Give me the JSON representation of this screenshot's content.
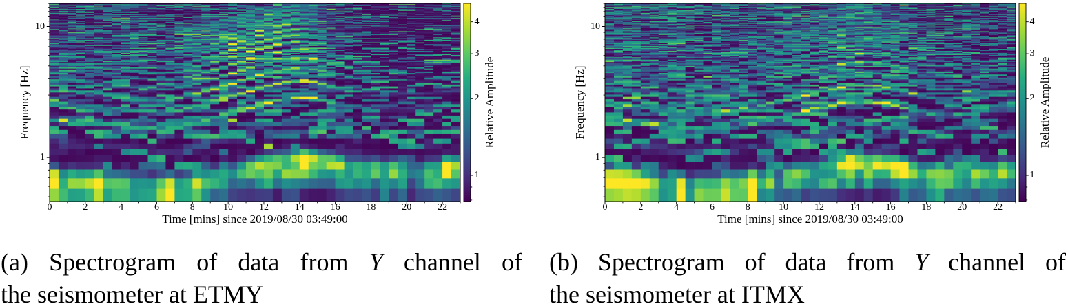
{
  "page": {
    "background": "#ffffff"
  },
  "colors": {
    "text": "#000000",
    "background": "#ffffff",
    "viridis": [
      "#440154",
      "#472d7b",
      "#3b528b",
      "#2c728e",
      "#21918c",
      "#27ad81",
      "#5ec962",
      "#aadc32",
      "#fde725"
    ]
  },
  "chart_data": [
    {
      "panel": "a",
      "type": "heatmap",
      "subtype": "spectrogram",
      "xlabel": "Time [mins] since 2019/08/30 03:49:00",
      "ylabel": "Frequency [Hz]",
      "colorbar_label": "Relative Amplitude",
      "x_range": [
        0,
        23
      ],
      "y_range_hz": [
        0.46,
        15
      ],
      "y_scale": "log",
      "x_ticks": [
        0,
        2,
        4,
        6,
        8,
        10,
        12,
        14,
        16,
        18,
        20,
        22
      ],
      "x_minor_ticks": [
        1,
        3,
        5,
        7,
        9,
        11,
        13,
        15,
        17,
        19,
        21,
        23
      ],
      "y_ticks": [
        1,
        10
      ],
      "y_minor_ticks": [
        0.5,
        0.6,
        0.7,
        0.8,
        0.9,
        2,
        3,
        4,
        5,
        6,
        7,
        8,
        9,
        11,
        12,
        13,
        14,
        15
      ],
      "colorbar_ticks": [
        1,
        2,
        3,
        4
      ],
      "colorbar_minor_ticks": [
        0.8,
        0.9
      ],
      "color_range": [
        0.79,
        4.72
      ],
      "color_scale": "log",
      "colormap": "viridis",
      "time_bin_mins": 0.5,
      "freq_bin_hz": 0.117,
      "caption_lines": [
        [
          {
            "text": "(a) Spectrogram of data from "
          },
          {
            "text": "Y",
            "italic": true
          },
          {
            "text": " channel of"
          }
        ],
        [
          {
            "text": "the seismometer at ETMY"
          }
        ]
      ],
      "model": {
        "seed": 11,
        "fundamental_hz": {
          "t": [
            0,
            1.5,
            3,
            4.5,
            6,
            7,
            8,
            9,
            10,
            11,
            12,
            13,
            14,
            15,
            16,
            17,
            18,
            19,
            20,
            21,
            22,
            23
          ],
          "f": [
            0.645,
            0.64,
            0.61,
            0.58,
            0.555,
            0.56,
            0.6,
            0.655,
            0.72,
            0.79,
            0.87,
            0.93,
            0.965,
            0.945,
            0.875,
            0.815,
            0.8,
            0.78,
            0.79,
            0.765,
            0.8,
            0.845
          ]
        },
        "band_envelope": {
          "t": [
            0,
            2.5,
            3,
            5,
            7,
            7.5,
            8.5,
            9,
            10,
            11,
            11.5,
            12,
            13,
            15,
            15.7,
            16,
            17,
            19,
            19.7,
            20,
            21,
            21.3,
            21.7,
            22,
            23
          ],
          "a": [
            1.0,
            1.0,
            0.8,
            0.75,
            0.8,
            1.0,
            1.0,
            0.5,
            0.45,
            0.5,
            0.8,
            0.95,
            1.0,
            1.0,
            0.9,
            0.85,
            0.85,
            0.85,
            0.6,
            0.45,
            0.45,
            0.6,
            0.9,
            0.9,
            0.95
          ]
        },
        "harmonic_envelope": {
          "t": [
            0,
            2,
            4,
            6,
            7.5,
            8,
            9,
            10,
            12,
            14,
            15,
            15.5,
            16,
            16.5,
            17,
            18,
            19,
            20,
            21,
            22,
            23
          ],
          "a": [
            0.58,
            0.55,
            0.5,
            0.48,
            0.52,
            0.72,
            0.92,
            1.0,
            1.0,
            1.0,
            0.85,
            0.6,
            0.4,
            0.26,
            0.18,
            0.15,
            0.12,
            0.1,
            0.1,
            0.08,
            0.08
          ]
        },
        "harmonics": [
          {
            "n": 0.82,
            "w": 0.45
          },
          {
            "n": 1,
            "w": 1.0
          },
          {
            "n": 2,
            "w": 0.16
          },
          {
            "n": 3,
            "w": 1.0
          },
          {
            "n": 4,
            "w": 0.95
          },
          {
            "n": 5,
            "w": 0.9
          },
          {
            "n": 6,
            "w": 0.9
          },
          {
            "n": 7,
            "w": 0.85
          },
          {
            "n": 8,
            "w": 0.85
          },
          {
            "n": 9,
            "w": 0.8
          },
          {
            "n": 10,
            "w": 0.75
          },
          {
            "n": 11,
            "w": 0.7
          },
          {
            "n": 12,
            "w": 0.6
          },
          {
            "n": 13,
            "w": 0.55
          },
          {
            "n": 14,
            "w": 0.5
          },
          {
            "n": 15,
            "w": 0.45
          },
          {
            "n": 16,
            "w": 0.4
          }
        ],
        "high_harmonic_scale": 1.0,
        "noise": {
          "streak_prob": 0.4,
          "quiet_after_min": 16,
          "quiet_factor": 0.45,
          "low_freq_factor": 0.55
        }
      }
    },
    {
      "panel": "b",
      "type": "heatmap",
      "subtype": "spectrogram",
      "xlabel": "Time [mins] since 2019/08/30 03:49:00",
      "ylabel": "Frequency [Hz]",
      "colorbar_label": "Relative Amplitude",
      "x_range": [
        0,
        23
      ],
      "y_range_hz": [
        0.46,
        15
      ],
      "y_scale": "log",
      "x_ticks": [
        0,
        2,
        4,
        6,
        8,
        10,
        12,
        14,
        16,
        18,
        20,
        22
      ],
      "x_minor_ticks": [
        1,
        3,
        5,
        7,
        9,
        11,
        13,
        15,
        17,
        19,
        21,
        23
      ],
      "y_ticks": [
        1,
        10
      ],
      "y_minor_ticks": [
        0.5,
        0.6,
        0.7,
        0.8,
        0.9,
        2,
        3,
        4,
        5,
        6,
        7,
        8,
        9,
        11,
        12,
        13,
        14,
        15
      ],
      "colorbar_ticks": [
        1,
        2,
        3,
        4
      ],
      "colorbar_minor_ticks": [
        0.8,
        0.9
      ],
      "color_range": [
        0.79,
        4.72
      ],
      "color_scale": "log",
      "colormap": "viridis",
      "time_bin_mins": 0.5,
      "freq_bin_hz": 0.117,
      "caption_lines": [
        [
          {
            "text": "(b) Spectrogram of data from "
          },
          {
            "text": "Y",
            "italic": true
          },
          {
            "text": " channel of"
          }
        ],
        [
          {
            "text": "the seismometer at ITMX"
          }
        ]
      ],
      "model": {
        "seed": 29,
        "fundamental_hz": {
          "t": [
            0,
            1.5,
            3,
            4.5,
            5.5,
            7,
            8,
            9,
            10,
            11,
            12,
            13,
            14,
            15,
            16,
            17,
            18,
            19,
            20,
            21,
            22,
            23
          ],
          "f": [
            0.645,
            0.63,
            0.59,
            0.56,
            0.55,
            0.565,
            0.6,
            0.64,
            0.685,
            0.73,
            0.8,
            0.855,
            0.895,
            0.895,
            0.855,
            0.79,
            0.73,
            0.7,
            0.715,
            0.745,
            0.775,
            0.78
          ]
        },
        "band_envelope": {
          "t": [
            0,
            2.5,
            3,
            4,
            5.5,
            6,
            7.5,
            8,
            8.7,
            9,
            10,
            11,
            11.5,
            13,
            13.5,
            15.5,
            16,
            17,
            18,
            19,
            19.5,
            20,
            20.8,
            21.3,
            22,
            23
          ],
          "a": [
            1.0,
            1.0,
            0.85,
            0.9,
            0.7,
            0.62,
            0.62,
            1.0,
            1.0,
            0.45,
            0.42,
            0.5,
            0.7,
            0.85,
            1.0,
            1.0,
            0.9,
            0.85,
            0.85,
            0.8,
            0.6,
            0.5,
            0.5,
            0.8,
            0.85,
            0.8
          ]
        },
        "harmonic_envelope": {
          "t": [
            0,
            2,
            4,
            6,
            8,
            9,
            10,
            11,
            12,
            13,
            14,
            15,
            16,
            17,
            18,
            19,
            20,
            21,
            22,
            23
          ],
          "a": [
            0.62,
            0.55,
            0.52,
            0.55,
            0.58,
            0.62,
            0.7,
            0.8,
            0.9,
            0.97,
            1.0,
            0.95,
            0.8,
            0.62,
            0.45,
            0.35,
            0.3,
            0.32,
            0.3,
            0.28
          ]
        },
        "harmonics": [
          {
            "n": 0.82,
            "w": 0.45
          },
          {
            "n": 1,
            "w": 1.0
          },
          {
            "n": 2,
            "w": 0.16
          },
          {
            "n": 3,
            "w": 1.0
          },
          {
            "n": 4,
            "w": 0.95
          },
          {
            "n": 5,
            "w": 0.85
          },
          {
            "n": 6,
            "w": 0.85
          },
          {
            "n": 7,
            "w": 0.75
          },
          {
            "n": 8,
            "w": 0.75
          },
          {
            "n": 9,
            "w": 0.65
          },
          {
            "n": 10,
            "w": 0.6
          },
          {
            "n": 11,
            "w": 0.55
          },
          {
            "n": 12,
            "w": 0.5
          },
          {
            "n": 13,
            "w": 0.45
          },
          {
            "n": 14,
            "w": 0.4
          },
          {
            "n": 15,
            "w": 0.38
          },
          {
            "n": 16,
            "w": 0.35
          }
        ],
        "high_harmonic_scale": 0.78,
        "noise": {
          "streak_prob": 0.46,
          "quiet_after_min": 17.5,
          "quiet_factor": 0.7,
          "low_freq_factor": 0.55
        }
      }
    }
  ]
}
